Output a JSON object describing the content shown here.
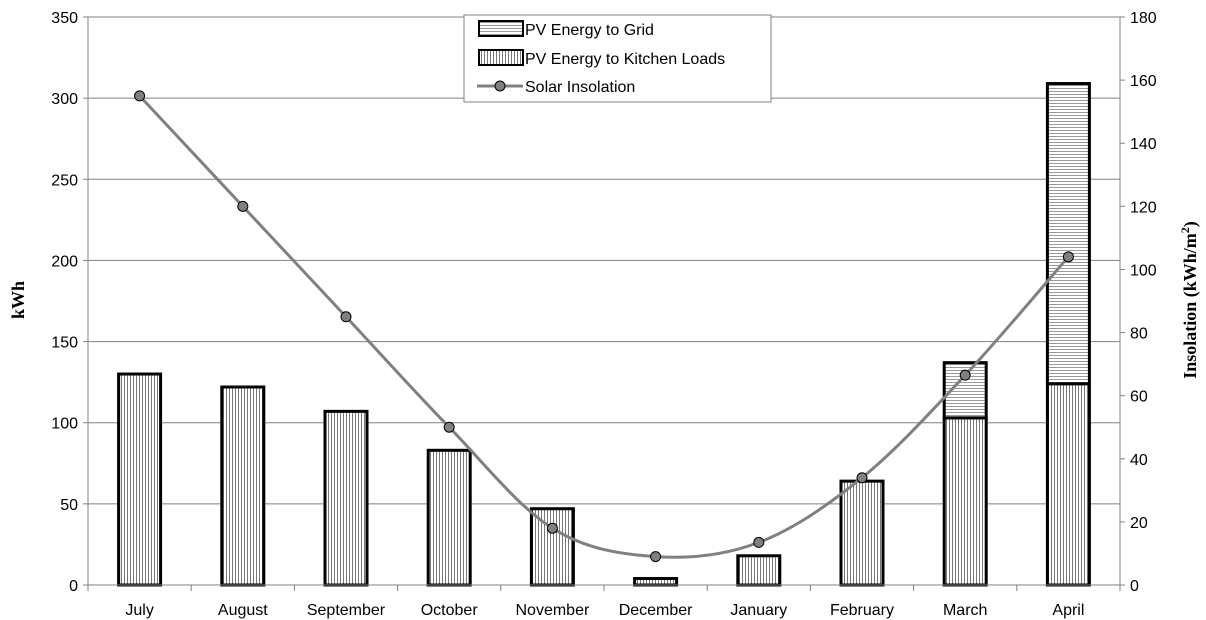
{
  "chart_data": {
    "type": "bar",
    "categories": [
      "July",
      "August",
      "September",
      "October",
      "November",
      "December",
      "January",
      "February",
      "March",
      "April"
    ],
    "series": [
      {
        "name": "PV Energy to Kitchen Loads",
        "kind": "bar",
        "axis": "left",
        "pattern": "vertical-stripes",
        "values": [
          130,
          122,
          107,
          83,
          47,
          4,
          18,
          64,
          103,
          124
        ]
      },
      {
        "name": "PV Energy to Grid",
        "kind": "bar",
        "axis": "left",
        "pattern": "horizontal-stripes",
        "values": [
          0,
          0,
          0,
          0,
          0,
          0,
          0,
          0,
          34,
          185
        ]
      },
      {
        "name": "Solar Insolation",
        "kind": "line",
        "axis": "right",
        "marker": "circle",
        "values": [
          155,
          120,
          85,
          50,
          18,
          9,
          13.5,
          34,
          66.5,
          104
        ]
      }
    ],
    "stacked": true,
    "ylabel": "kWh",
    "y2label_main": "Insolation (kWh/m",
    "y2label_sup": "2",
    "y2label_close": ")",
    "ylim": [
      0,
      350
    ],
    "yticks": [
      0,
      50,
      100,
      150,
      200,
      250,
      300,
      350
    ],
    "y2lim": [
      0,
      180
    ],
    "y2ticks": [
      0,
      20,
      40,
      60,
      80,
      100,
      120,
      140,
      160,
      180
    ],
    "grid": true,
    "legend_position": "top-center",
    "colors": {
      "bar_outline": "#000000",
      "bar_fill": "#ffffff",
      "stripe": "#777777",
      "grid_stripe": "#9a9a9a",
      "line": "#808080",
      "marker": "#808080",
      "gridline": "#808080"
    }
  }
}
